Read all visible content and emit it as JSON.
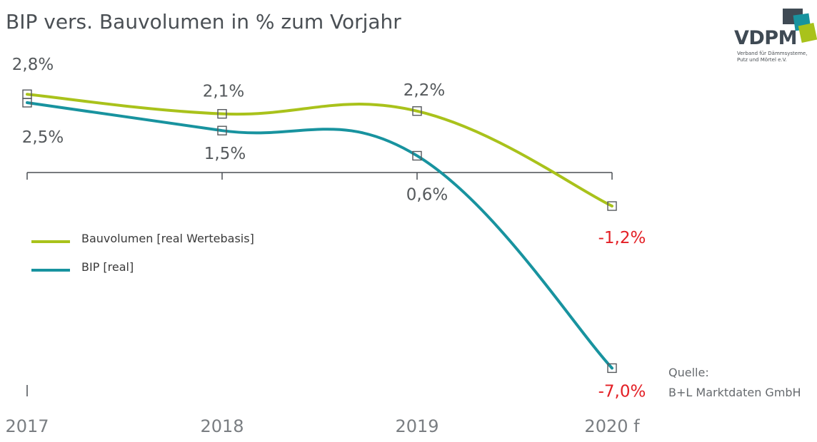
{
  "title": "BIP vers. Bauvolumen in % zum Vorjahr",
  "logo": {
    "name": "VDPM",
    "tagline_line1": "Verband für Dämmsysteme,",
    "tagline_line2": "Putz und Mörtel e.V.",
    "colors": {
      "dark": "#3f4a54",
      "teal": "#18939f",
      "lime": "#a9c21b"
    }
  },
  "source": {
    "label": "Quelle:",
    "name": "B+L Marktdaten GmbH"
  },
  "colors": {
    "text": "#55595c",
    "negative": "#e31e24",
    "axis": "#4a4f54"
  },
  "chart_data": {
    "type": "line",
    "categories": [
      "2017",
      "2018",
      "2019",
      "2020 f"
    ],
    "ylim": [
      -7.6,
      3.3
    ],
    "grid": false,
    "legend": "middle-left",
    "series": [
      {
        "name": "Bauvolumen [real Wertebasis]",
        "color": "#a9c21b",
        "values": [
          2.8,
          2.1,
          2.2,
          -1.2
        ],
        "labels": [
          "2,8%",
          "2,1%",
          "2,2%",
          "-1,2%"
        ]
      },
      {
        "name": "BIP [real]",
        "color": "#18939f",
        "values": [
          2.5,
          1.5,
          0.6,
          -7.0
        ],
        "labels": [
          "2,5%",
          "1,5%",
          "0,6%",
          "-7,0%"
        ]
      }
    ]
  }
}
